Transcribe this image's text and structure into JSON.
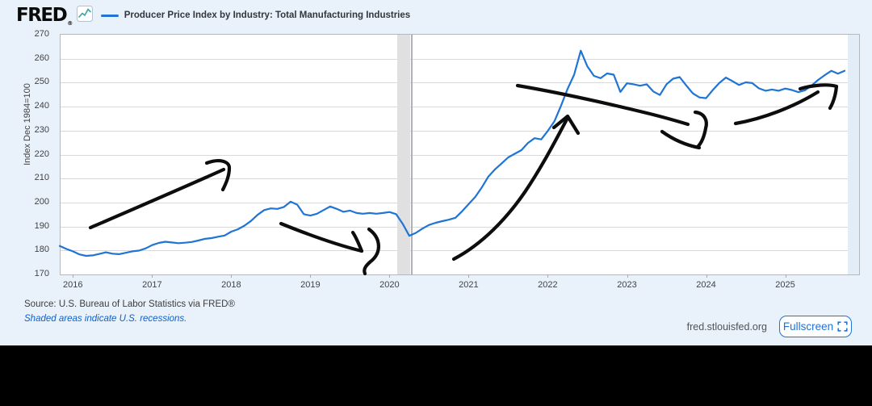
{
  "header": {
    "logo_text": "FRED",
    "logo_reg": "®",
    "series_label": "Producer Price Index by Industry: Total Manufacturing Industries"
  },
  "chart": {
    "y_axis_label": "Index Dec 1984=100",
    "y_ticks": [
      270,
      260,
      250,
      240,
      230,
      220,
      210,
      200,
      190,
      180,
      170
    ],
    "x_ticks": [
      "2016",
      "2017",
      "2018",
      "2019",
      "2020",
      "2021",
      "2022",
      "2023",
      "2024",
      "2025"
    ],
    "line_color": "#1f74d4",
    "recession_band_color": "#e0e0e0",
    "annotation_color": "#0d0d0d"
  },
  "chart_data": {
    "type": "line",
    "title": "Producer Price Index by Industry: Total Manufacturing Industries",
    "ylabel": "Index Dec 1984=100",
    "ylim": [
      170,
      270
    ],
    "x_start": "2015-11",
    "x_end": "2025-10",
    "frequency": "monthly",
    "grid": "horizontal",
    "legend_position": "top-left",
    "recession_shading": {
      "start": "2020-02",
      "end": "2020-04"
    },
    "series": [
      {
        "name": "Producer Price Index by Industry: Total Manufacturing Industries",
        "values": [
          181.5,
          180.3,
          179.3,
          178.0,
          177.4,
          177.6,
          178.2,
          178.9,
          178.3,
          178.1,
          178.7,
          179.3,
          179.6,
          180.5,
          181.9,
          182.8,
          183.3,
          183.0,
          182.7,
          182.9,
          183.2,
          183.8,
          184.5,
          184.8,
          185.4,
          185.9,
          187.5,
          188.5,
          190.0,
          192.0,
          194.5,
          196.5,
          197.2,
          197.0,
          197.8,
          200.0,
          198.8,
          194.8,
          194.2,
          195.0,
          196.5,
          198.0,
          197.0,
          195.8,
          196.3,
          195.3,
          195.0,
          195.3,
          195.0,
          195.3,
          195.7,
          194.8,
          190.8,
          185.8,
          187.0,
          188.8,
          190.3,
          191.2,
          191.9,
          192.5,
          193.3,
          196.0,
          199.0,
          202.0,
          206.0,
          210.5,
          213.5,
          216.0,
          218.5,
          220.0,
          221.5,
          224.5,
          226.5,
          226.0,
          229.5,
          233.5,
          240.0,
          247.0,
          253.0,
          263.0,
          256.5,
          252.5,
          251.5,
          253.5,
          253.0,
          245.8,
          249.4,
          249.0,
          248.4,
          249.0,
          246.0,
          244.5,
          249.0,
          251.3,
          252.0,
          248.5,
          245.2,
          243.5,
          243.2,
          246.5,
          249.5,
          251.8,
          250.3,
          248.7,
          249.8,
          249.5,
          247.3,
          246.3,
          246.8,
          246.3,
          247.2,
          246.6,
          245.7,
          246.5,
          248.5,
          250.8,
          252.8,
          254.6,
          253.4,
          254.6
        ]
      }
    ],
    "annotations": [
      {
        "name": "arrow-rise-2016-2018",
        "kind": "hand-drawn-arrow",
        "direction": "up-right",
        "paths": [
          "M112,282 C170,257 235,229 277,210",
          "M256,202 C272,196 284,200 284,208 C284,218 280,227 276,235"
        ]
      },
      {
        "name": "arrow-dip-2019",
        "kind": "hand-drawn-arrow",
        "direction": "down-right",
        "paths": [
          "M348,277 C385,292 420,304 448,311",
          "M448,311 C444,301 441,294 437,288",
          "M457,284 C472,295 473,313 459,324 C452,330 450,334 452,339"
        ]
      },
      {
        "name": "arrow-surge-2021-2022",
        "kind": "hand-drawn-arrow",
        "direction": "up-right",
        "paths": [
          "M562,321 C598,302 628,270 650,238 C673,204 690,170 702,148",
          "M686,158 L703,144 L716,165"
        ]
      },
      {
        "name": "arrow-decline-2022-2024",
        "kind": "hand-drawn-arrow",
        "direction": "down-right",
        "paths": [
          "M641,106 C700,116 760,130 805,141 C825,146 842,151 852,154",
          "M861,139 C872,140 877,149 874,159 C872,170 869,177 864,182",
          "M820,163 C834,173 850,180 866,183"
        ]
      },
      {
        "name": "arrow-rise-2024-2025",
        "kind": "hand-drawn-arrow",
        "direction": "up-right",
        "paths": [
          "M911,153 C945,147 982,133 1013,114",
          "M991,110 C1008,105 1026,104 1036,107 C1035,118 1032,127 1028,134"
        ]
      }
    ]
  },
  "footer": {
    "source_text": "Source: U.S. Bureau of Labor Statistics via FRED®",
    "recession_note": "Shaded areas indicate U.S. recessions.",
    "site_url": "fred.stlouisfed.org",
    "fullscreen_label": "Fullscreen"
  }
}
